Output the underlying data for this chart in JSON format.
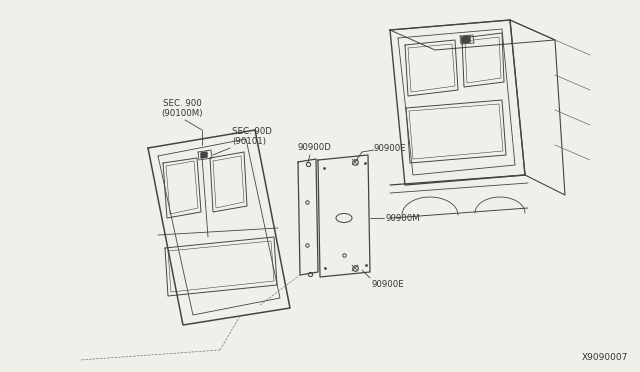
{
  "bg_color": "#f0f0eb",
  "line_color": "#444444",
  "text_color": "#333333",
  "diagram_id": "X9090007",
  "labels": {
    "sec900": "SEC. 900\n(90100M)",
    "sec90d": "SEC. 90D\n(90101)",
    "l90900e_top": "90900E",
    "l90900": "90900D",
    "l90900m": "90900M",
    "l90900e_bot": "90900E"
  }
}
